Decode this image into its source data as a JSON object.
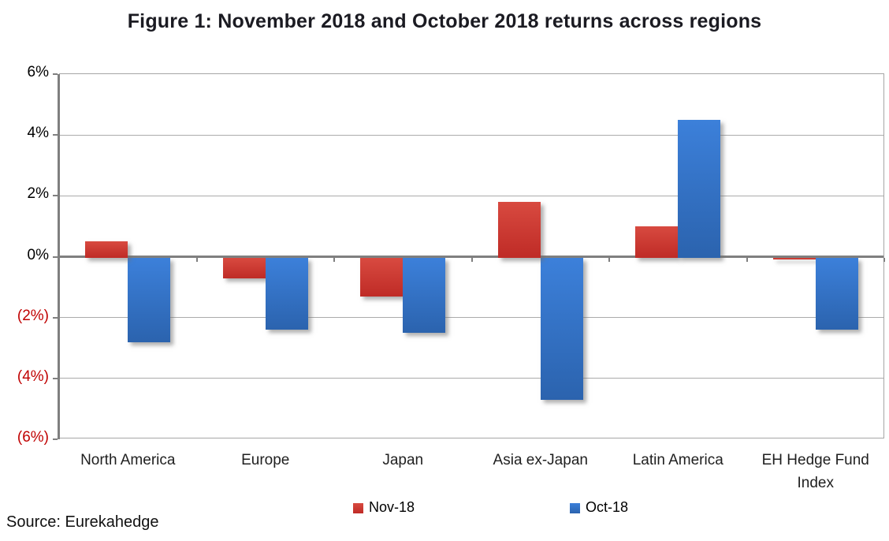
{
  "chart_data": {
    "type": "bar",
    "title": "Figure 1: November 2018 and October 2018 returns across regions",
    "categories": [
      "North America",
      "Europe",
      "Japan",
      "Asia ex-Japan",
      "Latin America",
      "EH Hedge Fund Index"
    ],
    "series": [
      {
        "name": "Nov-18",
        "color_top": "#d84a40",
        "color_bottom": "#bf2b26",
        "legend_color": "#c23430",
        "values": [
          0.5,
          -0.7,
          -1.3,
          1.8,
          1.0,
          -0.1
        ]
      },
      {
        "name": "Oct-18",
        "color_top": "#3c80da",
        "color_bottom": "#2b63ae",
        "legend_color": "#2f6fc1",
        "values": [
          -2.8,
          -2.4,
          -2.5,
          -4.7,
          4.5,
          -2.4
        ]
      }
    ],
    "ylim": [
      -6,
      6
    ],
    "ytick_step": 2,
    "ytick_labels": [
      "6%",
      "4%",
      "2%",
      "0%",
      "(2%)",
      "(4%)",
      "(6%)"
    ],
    "grid": true,
    "legend_position": "bottom"
  },
  "source_note": "Source: Eurekahedge",
  "colors": {
    "axis": "#7f7f7f",
    "gridline": "#ababab",
    "plot_border": "#a6a6a6",
    "positive_tick_label": "#000000",
    "negative_tick_label": "#c00000"
  }
}
